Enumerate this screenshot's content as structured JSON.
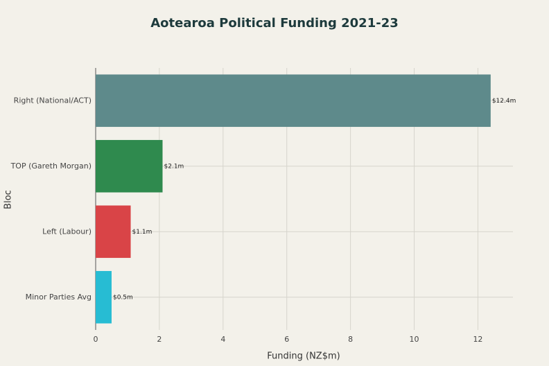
{
  "chart_data": {
    "type": "hbar",
    "title": "Aotearoa Political Funding 2021-23",
    "x_label": "Funding (NZ$m)",
    "y_label": "Bloc",
    "categories": [
      "Right (National/ACT)",
      "TOP (Gareth Morgan)",
      "Left (Labour)",
      "Minor Parties Avg"
    ],
    "values": [
      12.4,
      2.1,
      1.1,
      0.5
    ],
    "value_labels": [
      "$12.4m",
      "$2.1m",
      "$1.1m",
      "$0.5m"
    ],
    "colors": [
      "#5e8a8b",
      "#2f8a4e",
      "#d94447",
      "#27bcd3"
    ],
    "xlim": [
      0,
      13.1
    ],
    "xticks": [
      0,
      2,
      4,
      6,
      8,
      10,
      12
    ],
    "grid": true
  }
}
